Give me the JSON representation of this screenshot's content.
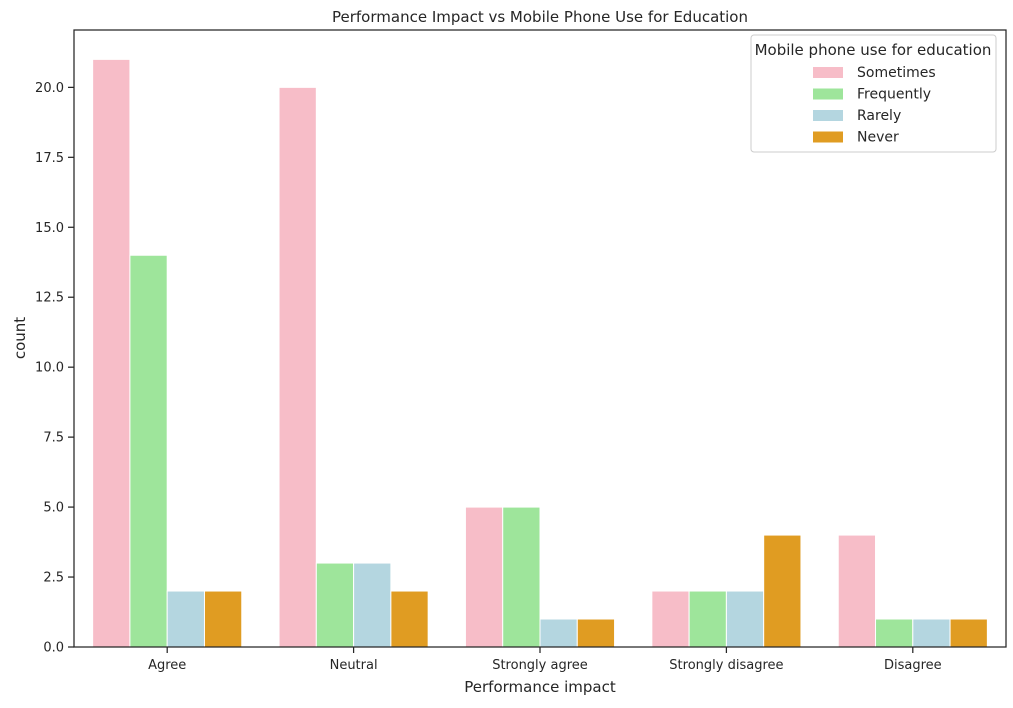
{
  "chart_data": {
    "type": "bar",
    "title": "Performance Impact vs Mobile Phone Use for Education",
    "xlabel": "Performance impact",
    "ylabel": "count",
    "categories": [
      "Agree",
      "Neutral",
      "Strongly agree",
      "Strongly disagree",
      "Disagree"
    ],
    "series": [
      {
        "name": "Sometimes",
        "color": "#f7bdc8",
        "values": [
          21,
          20,
          5,
          2,
          4
        ]
      },
      {
        "name": "Frequently",
        "color": "#9ee59b",
        "values": [
          14,
          3,
          5,
          2,
          1
        ]
      },
      {
        "name": "Rarely",
        "color": "#b4d6e0",
        "values": [
          2,
          3,
          1,
          2,
          1
        ]
      },
      {
        "name": "Never",
        "color": "#e09c22",
        "values": [
          2,
          2,
          1,
          4,
          1
        ]
      }
    ],
    "ylim": [
      0,
      22.05
    ],
    "yticks": [
      "0.0",
      "2.5",
      "5.0",
      "7.5",
      "10.0",
      "12.5",
      "15.0",
      "17.5",
      "20.0"
    ],
    "grid": false,
    "legend_title": "Mobile phone use for education",
    "legend_position": "top-right"
  }
}
